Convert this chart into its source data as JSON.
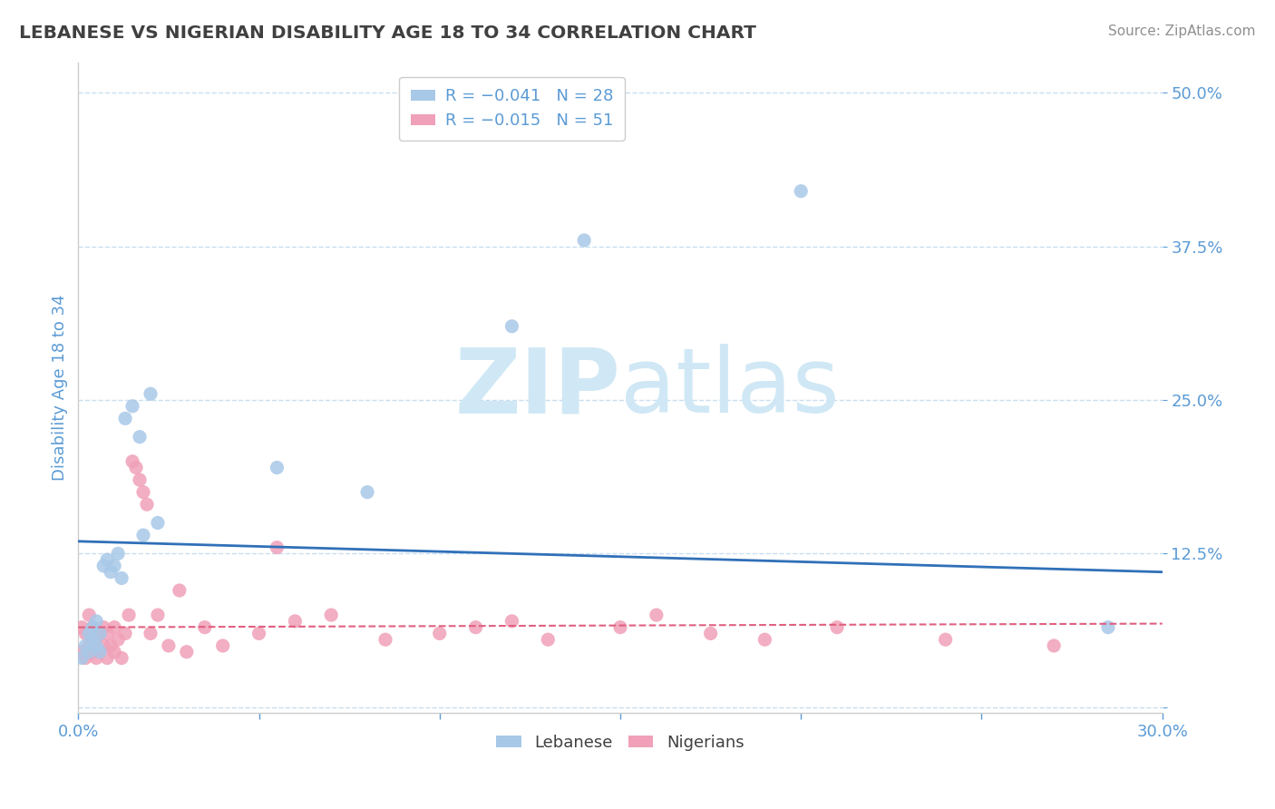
{
  "title": "LEBANESE VS NIGERIAN DISABILITY AGE 18 TO 34 CORRELATION CHART",
  "source_text": "Source: ZipAtlas.com",
  "ylabel": "Disability Age 18 to 34",
  "xlim": [
    0.0,
    0.3
  ],
  "ylim": [
    -0.005,
    0.525
  ],
  "yticks": [
    0.0,
    0.125,
    0.25,
    0.375,
    0.5
  ],
  "ytick_labels": [
    "",
    "12.5%",
    "25.0%",
    "37.5%",
    "50.0%"
  ],
  "xticks": [
    0.0,
    0.05,
    0.1,
    0.15,
    0.2,
    0.25,
    0.3
  ],
  "xtick_labels": [
    "0.0%",
    "",
    "",
    "",
    "",
    "",
    "30.0%"
  ],
  "lebanese_color": "#a8c8e8",
  "nigerian_color": "#f0a0b8",
  "lebanese_line_color": "#3070b8",
  "nigerian_line_color": "#e06080",
  "title_color": "#404040",
  "tick_color": "#5b9bd5",
  "source_color": "#909090",
  "background_color": "#ffffff",
  "grid_color": "#c8dff0",
  "watermark_color": "#d0e8f5",
  "lebanese_x": [
    0.001,
    0.002,
    0.003,
    0.003,
    0.004,
    0.004,
    0.005,
    0.005,
    0.006,
    0.006,
    0.007,
    0.008,
    0.009,
    0.01,
    0.011,
    0.012,
    0.013,
    0.015,
    0.017,
    0.018,
    0.02,
    0.022,
    0.055,
    0.08,
    0.12,
    0.14,
    0.2,
    0.285
  ],
  "lebanese_y": [
    0.04,
    0.05,
    0.045,
    0.06,
    0.055,
    0.065,
    0.05,
    0.07,
    0.045,
    0.06,
    0.115,
    0.12,
    0.11,
    0.115,
    0.125,
    0.105,
    0.235,
    0.245,
    0.22,
    0.14,
    0.255,
    0.15,
    0.195,
    0.175,
    0.31,
    0.38,
    0.42,
    0.065
  ],
  "nigerian_x": [
    0.001,
    0.001,
    0.002,
    0.002,
    0.003,
    0.003,
    0.004,
    0.004,
    0.005,
    0.005,
    0.006,
    0.006,
    0.007,
    0.007,
    0.008,
    0.008,
    0.009,
    0.01,
    0.01,
    0.011,
    0.012,
    0.013,
    0.014,
    0.015,
    0.016,
    0.017,
    0.018,
    0.019,
    0.02,
    0.022,
    0.025,
    0.028,
    0.03,
    0.035,
    0.04,
    0.05,
    0.055,
    0.06,
    0.07,
    0.085,
    0.1,
    0.11,
    0.12,
    0.13,
    0.15,
    0.16,
    0.175,
    0.19,
    0.21,
    0.24,
    0.27
  ],
  "nigerian_y": [
    0.045,
    0.065,
    0.04,
    0.06,
    0.05,
    0.075,
    0.045,
    0.065,
    0.04,
    0.055,
    0.045,
    0.06,
    0.05,
    0.065,
    0.04,
    0.06,
    0.05,
    0.045,
    0.065,
    0.055,
    0.04,
    0.06,
    0.075,
    0.2,
    0.195,
    0.185,
    0.175,
    0.165,
    0.06,
    0.075,
    0.05,
    0.095,
    0.045,
    0.065,
    0.05,
    0.06,
    0.13,
    0.07,
    0.075,
    0.055,
    0.06,
    0.065,
    0.07,
    0.055,
    0.065,
    0.075,
    0.06,
    0.055,
    0.065,
    0.055,
    0.05
  ]
}
